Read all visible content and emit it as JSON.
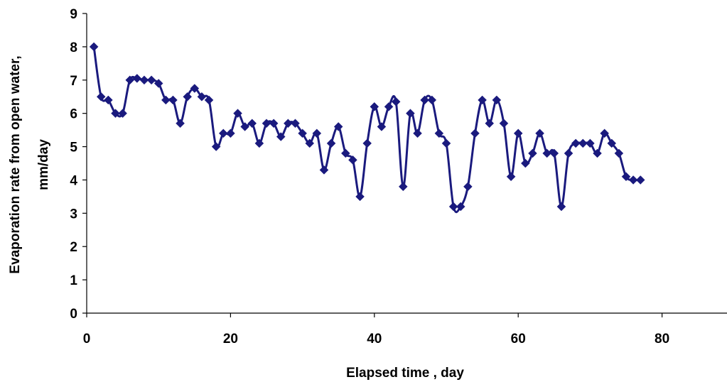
{
  "chart_data": {
    "type": "line",
    "title": "",
    "xlabel": "Elapsed time , day",
    "ylabel_line1": "Evaporation rate  from open water,",
    "ylabel_line2": "mm/day",
    "xlim": [
      0,
      90
    ],
    "ylim": [
      0,
      9
    ],
    "xticks": [
      0,
      20,
      40,
      60,
      80
    ],
    "xtick_labels": [
      "0",
      "20",
      "40",
      "60",
      "80"
    ],
    "yticks": [
      0,
      1,
      2,
      3,
      4,
      5,
      6,
      7,
      8,
      9
    ],
    "ytick_labels": [
      "0",
      "1",
      "2",
      "3",
      "4",
      "5",
      "6",
      "7",
      "8",
      "9"
    ],
    "grid": false,
    "legend": "none",
    "series": [
      {
        "color": "#1a1a7e",
        "marker": "diamond",
        "x": [
          1,
          2,
          3,
          4,
          5,
          6,
          7,
          8,
          9,
          10,
          11,
          12,
          13,
          14,
          15,
          16,
          17,
          18,
          19,
          20,
          21,
          22,
          23,
          24,
          25,
          26,
          27,
          28,
          29,
          30,
          31,
          32,
          33,
          34,
          35,
          36,
          37,
          38,
          39,
          40,
          41,
          42,
          43,
          44,
          45,
          46,
          47,
          48,
          49,
          50,
          51,
          52,
          53,
          54,
          55,
          56,
          57,
          58,
          59,
          60,
          61,
          62,
          63,
          64,
          65,
          66,
          67,
          68,
          69,
          70,
          71,
          72,
          73,
          74,
          75,
          76,
          77
        ],
        "y": [
          8.0,
          6.5,
          6.4,
          6.0,
          6.0,
          7.0,
          7.05,
          7.0,
          7.0,
          6.9,
          6.4,
          6.4,
          5.7,
          6.5,
          6.75,
          6.5,
          6.4,
          5.0,
          5.4,
          5.4,
          6.0,
          5.6,
          5.7,
          5.1,
          5.7,
          5.7,
          5.3,
          5.7,
          5.7,
          5.4,
          5.1,
          5.4,
          4.3,
          5.1,
          5.6,
          4.8,
          4.6,
          3.5,
          5.1,
          6.2,
          5.6,
          6.2,
          6.35,
          3.8,
          6.0,
          5.4,
          6.4,
          6.4,
          5.4,
          5.1,
          3.2,
          3.2,
          3.8,
          5.4,
          6.4,
          5.7,
          6.4,
          5.7,
          4.1,
          5.4,
          4.5,
          4.8,
          5.4,
          4.8,
          4.8,
          3.2,
          4.8,
          5.1,
          5.1,
          5.1,
          4.8,
          5.4,
          5.1,
          4.8,
          4.1,
          4.0,
          4.0
        ]
      }
    ]
  }
}
